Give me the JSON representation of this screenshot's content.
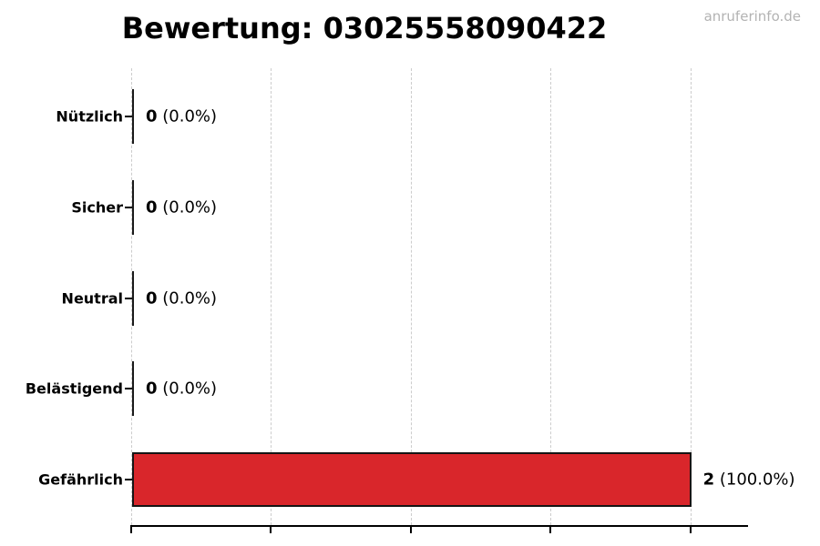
{
  "header": {
    "title": "Bewertung: 03025558090422",
    "watermark": "anruferinfo.de"
  },
  "chart_data": {
    "type": "bar",
    "orientation": "horizontal",
    "title": "Bewertung: 03025558090422",
    "categories": [
      "Nützlich",
      "Sicher",
      "Neutral",
      "Belästigend",
      "Gefährlich"
    ],
    "values": [
      0,
      0,
      0,
      0,
      2
    ],
    "percentages": [
      "0.0%",
      "0.0%",
      "0.0%",
      "0.0%",
      "100.0%"
    ],
    "annotations": [
      "0 (0.0%)",
      "0 (0.0%)",
      "0 (0.0%)",
      "0 (0.0%)",
      "2 (100.0%)"
    ],
    "total": 2,
    "xlim": [
      0,
      2.2
    ],
    "grid_values": [
      0,
      0.5,
      1.0,
      1.5,
      2.0
    ],
    "grid": true,
    "legend": "none",
    "xlabel": "",
    "ylabel": "",
    "colors": {
      "bar_fill": "#d9262b",
      "bar_edge": "#151515",
      "zero_bar_line": "#1a1a1a",
      "gridline": "#cccccc",
      "axis": "#000000",
      "text": "#000000",
      "watermark": "#b3b3b3",
      "background": "#ffffff"
    }
  }
}
